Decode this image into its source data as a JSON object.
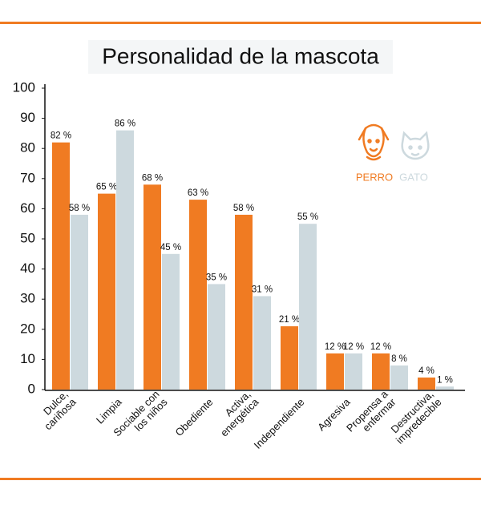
{
  "chart_data": {
    "type": "bar",
    "title": "Personalidad de la mascota",
    "categories": [
      [
        "Dulce,",
        "cariñosa"
      ],
      [
        "Limpia"
      ],
      [
        "Sociable con",
        "los niños"
      ],
      [
        "Obediente"
      ],
      [
        "Activa,",
        "energética"
      ],
      [
        "Independiente"
      ],
      [
        "Agresiva"
      ],
      [
        "Propensa a",
        "enfermar"
      ],
      [
        "Destructiva,",
        "impredecible"
      ]
    ],
    "series": [
      {
        "name": "PERRO",
        "color": "#f07b22",
        "values": [
          82,
          65,
          68,
          63,
          58,
          21,
          12,
          12,
          4
        ],
        "value_labels": [
          "82 %",
          "65 %",
          "68 %",
          "63 %",
          "58 %",
          "21 %",
          "12 %",
          "12 %",
          "4 %"
        ]
      },
      {
        "name": "GATO",
        "color": "#cdd9de",
        "values": [
          58,
          86,
          45,
          35,
          31,
          55,
          12,
          8,
          1
        ],
        "value_labels": [
          "58 %",
          "86 %",
          "45 %",
          "35 %",
          "31 %",
          "55 %",
          "12 %",
          "8 %",
          "1 %"
        ]
      }
    ],
    "ylim": [
      0,
      100
    ],
    "yticks": [
      0,
      10,
      20,
      30,
      40,
      50,
      60,
      70,
      80,
      90,
      100
    ]
  }
}
